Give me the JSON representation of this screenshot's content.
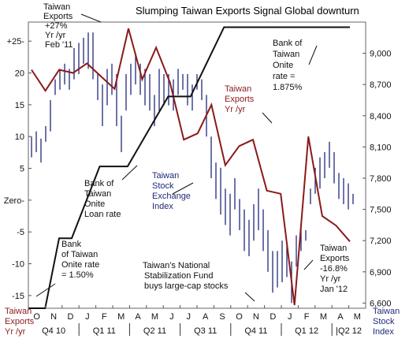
{
  "chart_data": {
    "type": "line",
    "title": "Slumping Taiwan Exports Signal Global downturn",
    "left_axis": {
      "label_lines": [
        "Taiwan",
        "Exports",
        "Yr /yr"
      ],
      "ticks": [
        "+25-",
        "20",
        "15",
        "10",
        "5",
        "Zero-",
        "-5",
        "-10",
        "-15"
      ],
      "tick_values": [
        25,
        20,
        15,
        10,
        5,
        0,
        -5,
        -10,
        -15
      ],
      "range": [
        -17,
        28
      ]
    },
    "right_axis": {
      "label_lines": [
        "Taiwan",
        "Stock",
        "Index"
      ],
      "ticks": [
        "9,000",
        "8,700",
        "8,400",
        "8,100",
        "7,800",
        "7,500",
        "7,200",
        "6,900",
        "6,600"
      ],
      "tick_values": [
        9000,
        8700,
        8400,
        8100,
        7800,
        7500,
        7200,
        6900,
        6600
      ],
      "range": [
        6550,
        9300
      ]
    },
    "x_axis": {
      "months": [
        "O",
        "N",
        "D",
        "J",
        "F",
        "M",
        "A",
        "M",
        "J",
        "J",
        "A",
        "S",
        "O",
        "N",
        "D",
        "J",
        "F",
        "M",
        "A",
        "M"
      ],
      "quarters": [
        "Q4 10",
        "Q1 11",
        "Q2 11",
        "Q3 11",
        "Q4 11",
        "Q1 12",
        "|Q2 12"
      ]
    },
    "series": [
      {
        "name": "Taiwan Exports Yr /yr",
        "axis": "left",
        "color": "#8b1a1a",
        "values": [
          20.5,
          17.2,
          20.5,
          20.0,
          21.5,
          19.5,
          17.5,
          27.0,
          19.0,
          24.0,
          18.5,
          9.5,
          10.5,
          15.0,
          5.5,
          8.5,
          9.5,
          1.5,
          1.0,
          -16.5,
          10.0,
          -2.5,
          -4.0,
          -6.5
        ]
      },
      {
        "name": "Bank of Taiwan Onite rate",
        "axis": "left",
        "color": "#111111",
        "steps": [
          {
            "x": 0,
            "y": -17
          },
          {
            "x": 1.2,
            "y": -17
          },
          {
            "x": 2.2,
            "y": -6
          },
          {
            "x": 3.1,
            "y": -6
          },
          {
            "x": 5.1,
            "y": 5.3
          },
          {
            "x": 7.1,
            "y": 5.3
          },
          {
            "x": 10.0,
            "y": 16.3
          },
          {
            "x": 11.6,
            "y": 16.3
          },
          {
            "x": 14.0,
            "y": 27.2
          },
          {
            "x": 23.0,
            "y": 27.2
          }
        ]
      },
      {
        "name": "Taiwan Stock Exchange Index",
        "axis": "right",
        "color": "#1f2a7a",
        "type": "high-low",
        "bars": [
          [
            8000,
            8200
          ],
          [
            8050,
            8250
          ],
          [
            7950,
            8180
          ],
          [
            8150,
            8300
          ],
          [
            8250,
            8550
          ],
          [
            8600,
            8750
          ],
          [
            8650,
            8850
          ],
          [
            8700,
            8900
          ],
          [
            8650,
            8850
          ],
          [
            8750,
            9050
          ],
          [
            8800,
            9100
          ],
          [
            8900,
            9150
          ],
          [
            8850,
            9200
          ],
          [
            8750,
            9200
          ],
          [
            8550,
            8800
          ],
          [
            8300,
            8700
          ],
          [
            8500,
            8850
          ],
          [
            8600,
            8900
          ],
          [
            8300,
            8800
          ],
          [
            8050,
            8400
          ],
          [
            8450,
            8800
          ],
          [
            8600,
            8900
          ],
          [
            8700,
            9000
          ],
          [
            8600,
            8900
          ],
          [
            8500,
            8850
          ],
          [
            8450,
            8800
          ],
          [
            8300,
            8600
          ],
          [
            8450,
            8850
          ],
          [
            8500,
            8800
          ],
          [
            8500,
            8800
          ],
          [
            8450,
            8750
          ],
          [
            8600,
            8850
          ],
          [
            8650,
            8800
          ],
          [
            8500,
            8800
          ],
          [
            8450,
            8700
          ],
          [
            8650,
            8800
          ],
          [
            8550,
            8750
          ],
          [
            8200,
            8600
          ],
          [
            7800,
            8200
          ],
          [
            7600,
            7950
          ],
          [
            7450,
            7900
          ],
          [
            7350,
            7700
          ],
          [
            7250,
            7650
          ],
          [
            7500,
            7800
          ],
          [
            7300,
            7600
          ],
          [
            7100,
            7500
          ],
          [
            7050,
            7400
          ],
          [
            7200,
            7550
          ],
          [
            7300,
            7700
          ],
          [
            7100,
            7500
          ],
          [
            6900,
            7300
          ],
          [
            6700,
            7100
          ],
          [
            6750,
            7100
          ],
          [
            6800,
            7200
          ],
          [
            6850,
            7150
          ],
          [
            6600,
            7000
          ],
          [
            6950,
            7250
          ],
          [
            7100,
            7350
          ],
          [
            7200,
            7300
          ],
          [
            7550,
            7700
          ],
          [
            7650,
            7900
          ],
          [
            7700,
            8000
          ],
          [
            7800,
            8050
          ],
          [
            7900,
            8150
          ],
          [
            7750,
            8050
          ],
          [
            7600,
            7850
          ],
          [
            7550,
            7800
          ],
          [
            7500,
            7750
          ],
          [
            7550,
            7650
          ]
        ]
      }
    ],
    "annotations": {
      "exports_peak": [
        "Taiwan",
        "Exports",
        "+27%",
        "Yr /yr",
        "Feb '11"
      ],
      "onite_rate_high": [
        "Bank of",
        "Taiwan",
        "Onite",
        "rate =",
        "1.875%"
      ],
      "exports_label": [
        "Taiwan",
        "Exports",
        "Yr /yr"
      ],
      "loan_rate": [
        "Bank of",
        "Taiwan",
        "Onite",
        "Loan rate"
      ],
      "stock_label": [
        "Taiwan",
        "Stock",
        "Exchange",
        "Index"
      ],
      "onite_rate_low": [
        "Bank",
        "of Taiwan",
        "Onite rate",
        "= 1.50%"
      ],
      "stabilization": [
        "Taiwan's National",
        "Stabilization Fund",
        "buys large-cap stocks"
      ],
      "exports_low": [
        "Taiwan",
        "Exports",
        "-16.8%",
        "Yr /yr",
        "Jan '12"
      ]
    }
  }
}
